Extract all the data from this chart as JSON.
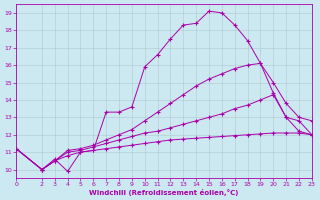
{
  "xlabel": "Windchill (Refroidissement éolien,°C)",
  "background_color": "#cce8f0",
  "grid_color": "#b0c8d0",
  "line_color": "#aa00aa",
  "xlim": [
    0,
    23
  ],
  "ylim": [
    9.5,
    19.5
  ],
  "xticks": [
    0,
    2,
    3,
    4,
    5,
    6,
    7,
    8,
    9,
    10,
    11,
    12,
    13,
    14,
    15,
    16,
    17,
    18,
    19,
    20,
    21,
    22,
    23
  ],
  "yticks": [
    10,
    11,
    12,
    13,
    14,
    15,
    16,
    17,
    18,
    19
  ],
  "lines": [
    {
      "x": [
        0,
        2,
        3,
        4,
        5,
        6,
        7,
        8,
        9,
        10,
        11,
        12,
        13,
        14,
        15,
        16,
        17,
        18,
        19,
        20,
        21,
        22,
        23
      ],
      "y": [
        11.2,
        10.0,
        10.6,
        9.9,
        11.0,
        11.1,
        13.3,
        13.3,
        13.6,
        15.9,
        16.6,
        17.5,
        18.3,
        18.4,
        19.1,
        19.0,
        18.3,
        17.4,
        16.1,
        14.4,
        13.0,
        12.8,
        12.0
      ]
    },
    {
      "x": [
        0,
        2,
        3,
        4,
        5,
        6,
        7,
        8,
        9,
        10,
        11,
        12,
        13,
        14,
        15,
        16,
        17,
        18,
        19,
        20,
        21,
        22,
        23
      ],
      "y": [
        11.2,
        10.0,
        10.5,
        11.1,
        11.2,
        11.4,
        11.7,
        12.0,
        12.3,
        12.8,
        13.3,
        13.8,
        14.3,
        14.8,
        15.2,
        15.5,
        15.8,
        16.0,
        16.1,
        15.0,
        13.8,
        13.0,
        12.8
      ]
    },
    {
      "x": [
        0,
        2,
        3,
        4,
        5,
        6,
        7,
        8,
        9,
        10,
        11,
        12,
        13,
        14,
        15,
        16,
        17,
        18,
        19,
        20,
        21,
        22,
        23
      ],
      "y": [
        11.2,
        10.0,
        10.5,
        11.0,
        11.1,
        11.3,
        11.5,
        11.7,
        11.9,
        12.1,
        12.2,
        12.4,
        12.6,
        12.8,
        13.0,
        13.2,
        13.5,
        13.7,
        14.0,
        14.3,
        13.0,
        12.2,
        12.0
      ]
    },
    {
      "x": [
        0,
        2,
        3,
        4,
        5,
        6,
        7,
        8,
        9,
        10,
        11,
        12,
        13,
        14,
        15,
        16,
        17,
        18,
        19,
        20,
        21,
        22,
        23
      ],
      "y": [
        11.2,
        10.0,
        10.5,
        10.8,
        11.0,
        11.1,
        11.2,
        11.3,
        11.4,
        11.5,
        11.6,
        11.7,
        11.75,
        11.8,
        11.85,
        11.9,
        11.95,
        12.0,
        12.05,
        12.1,
        12.1,
        12.1,
        12.0
      ]
    }
  ]
}
